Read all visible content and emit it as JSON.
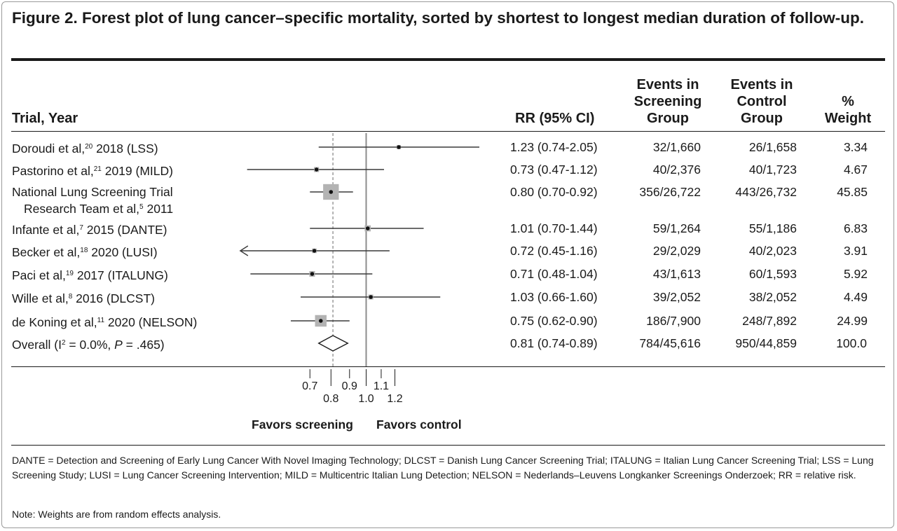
{
  "figure": {
    "title": "Figure 2. Forest plot of lung cancer–specific mortality, sorted by shortest to longest median duration of follow-up."
  },
  "headers": {
    "trial": "Trial, Year",
    "rr": "RR (95% CI)",
    "screening": "Events in\nScreening\nGroup",
    "control": "Events in\nControl\nGroup",
    "weight": "%\nWeight"
  },
  "chart_data": {
    "type": "forest",
    "x_scale": "log",
    "xlim": [
      0.7,
      1.2
    ],
    "reference_line": 1.0,
    "pooled_line": 0.81,
    "ticks_upper": [
      "0.7",
      "0.9",
      "1.1"
    ],
    "ticks_lower": [
      "0.8",
      "1.0",
      "1.2"
    ],
    "tick_values_upper": [
      0.7,
      0.9,
      1.1
    ],
    "tick_values_lower": [
      0.8,
      1.0,
      1.2
    ],
    "favors_left": "Favors screening",
    "favors_right": "Favors control",
    "studies": [
      {
        "author": "Doroudi et al,",
        "ref": "20",
        "rest": " 2018 (LSS)",
        "line2": "",
        "rr": 1.23,
        "lo": 0.74,
        "hi": 2.05,
        "rr_text": "1.23 (0.74-2.05)",
        "screen": "32/1,660",
        "control": "26/1,658",
        "weight": "3.34",
        "weight_value": 3.34
      },
      {
        "author": "Pastorino et al,",
        "ref": "21",
        "rest": " 2019 (MILD)",
        "line2": "",
        "rr": 0.73,
        "lo": 0.47,
        "hi": 1.12,
        "rr_text": "0.73 (0.47-1.12)",
        "screen": "40/2,376",
        "control": "40/1,723",
        "weight": "4.67",
        "weight_value": 4.67
      },
      {
        "author": "National Lung Screening Trial",
        "ref": "",
        "rest": "",
        "line2": "Research Team et al,",
        "line2_ref": "5",
        "line2_rest": " 2011",
        "rr": 0.8,
        "lo": 0.7,
        "hi": 0.92,
        "rr_text": "0.80 (0.70-0.92)",
        "screen": "356/26,722",
        "control": "443/26,732",
        "weight": "45.85",
        "weight_value": 45.85
      },
      {
        "author": "Infante et al,",
        "ref": "7",
        "rest": " 2015 (DANTE)",
        "line2": "",
        "rr": 1.01,
        "lo": 0.7,
        "hi": 1.44,
        "rr_text": "1.01 (0.70-1.44)",
        "screen": "59/1,264",
        "control": "55/1,186",
        "weight": "6.83",
        "weight_value": 6.83
      },
      {
        "author": "Becker et al,",
        "ref": "18",
        "rest": " 2020 (LUSI)",
        "line2": "",
        "rr": 0.72,
        "lo": 0.45,
        "hi": 1.16,
        "rr_text": "0.72 (0.45-1.16)",
        "screen": "29/2,029",
        "control": "40/2,023",
        "weight": "3.91",
        "weight_value": 3.91,
        "arrow_left": true
      },
      {
        "author": "Paci et al,",
        "ref": "19",
        "rest": " 2017 (ITALUNG)",
        "line2": "",
        "rr": 0.71,
        "lo": 0.48,
        "hi": 1.04,
        "rr_text": "0.71 (0.48-1.04)",
        "screen": "43/1,613",
        "control": "60/1,593",
        "weight": "5.92",
        "weight_value": 5.92
      },
      {
        "author": "Wille et al,",
        "ref": "8",
        "rest": " 2016 (DLCST)",
        "line2": "",
        "rr": 1.03,
        "lo": 0.66,
        "hi": 1.6,
        "rr_text": "1.03 (0.66-1.60)",
        "screen": "39/2,052",
        "control": "38/2,052",
        "weight": "4.49",
        "weight_value": 4.49
      },
      {
        "author": "de Koning et al,",
        "ref": "11",
        "rest": " 2020 (NELSON)",
        "line2": "",
        "rr": 0.75,
        "lo": 0.62,
        "hi": 0.9,
        "rr_text": "0.75 (0.62-0.90)",
        "screen": "186/7,900",
        "control": "248/7,892",
        "weight": "24.99",
        "weight_value": 24.99
      }
    ],
    "overall": {
      "label_prefix": "Overall (I",
      "label_sup": "2",
      "label_mid": " = 0.0%, ",
      "label_p": "P",
      "label_end": " = .465)",
      "rr": 0.81,
      "lo": 0.74,
      "hi": 0.89,
      "rr_text": "0.81 (0.74-0.89)",
      "screen": "784/45,616",
      "control": "950/44,859",
      "weight": "100.0"
    }
  },
  "footnotes": {
    "abbreviations": "DANTE = Detection and Screening of Early Lung Cancer With Novel Imaging Technology; DLCST = Danish Lung Cancer Screening Trial; ITALUNG = Italian Lung Cancer Screening Trial; LSS = Lung Screening Study; LUSI = Lung Cancer Screening Intervention; MILD = Multicentric Italian Lung Detection; NELSON = Nederlands–Leuvens Longkanker Screenings Onderzoek; RR = relative risk.",
    "note": "Note: Weights are from random effects analysis."
  },
  "colors": {
    "text": "#1a1a1a",
    "box": "#b3b3b3",
    "line": "#3a3a3a",
    "refline": "#8c8c8c"
  }
}
